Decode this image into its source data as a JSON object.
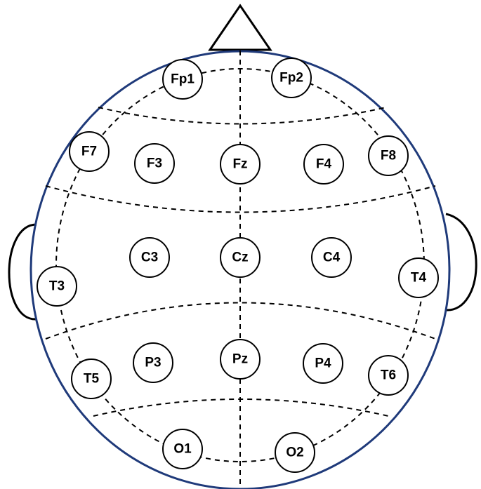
{
  "colors": {
    "head_outline": "#1f3a7a",
    "lines": "#000000",
    "background": "#ffffff"
  },
  "electrodes": [
    {
      "id": "fp1",
      "label": "Fp1"
    },
    {
      "id": "fp2",
      "label": "Fp2"
    },
    {
      "id": "f7",
      "label": "F7"
    },
    {
      "id": "f3",
      "label": "F3"
    },
    {
      "id": "fz",
      "label": "Fz"
    },
    {
      "id": "f4",
      "label": "F4"
    },
    {
      "id": "f8",
      "label": "F8"
    },
    {
      "id": "t3",
      "label": "T3"
    },
    {
      "id": "c3",
      "label": "C3"
    },
    {
      "id": "cz",
      "label": "Cz"
    },
    {
      "id": "c4",
      "label": "C4"
    },
    {
      "id": "t4",
      "label": "T4"
    },
    {
      "id": "t5",
      "label": "T5"
    },
    {
      "id": "p3",
      "label": "P3"
    },
    {
      "id": "pz",
      "label": "Pz"
    },
    {
      "id": "p4",
      "label": "P4"
    },
    {
      "id": "t6",
      "label": "T6"
    },
    {
      "id": "o1",
      "label": "O1"
    },
    {
      "id": "o2",
      "label": "O2"
    }
  ]
}
